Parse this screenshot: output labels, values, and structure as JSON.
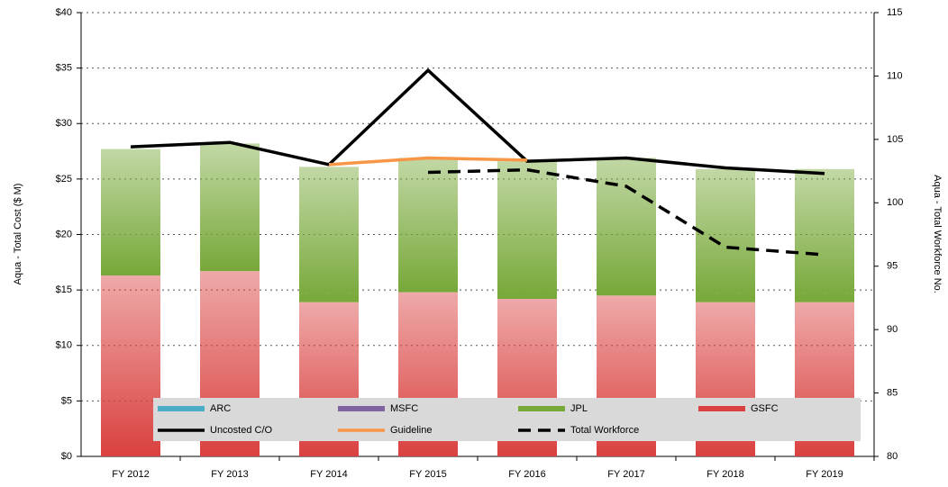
{
  "chart_data": {
    "type": "bar",
    "y_label": "Aqua - Total Cost ($ M)",
    "y2_label": "Aqua - Total Workforce No.",
    "categories": [
      "FY 2012",
      "FY 2013",
      "FY 2014",
      "FY 2015",
      "FY 2016",
      "FY 2017",
      "FY 2018",
      "FY 2019"
    ],
    "series": [
      {
        "name": "ARC",
        "color": "#4bacc6",
        "kind": "bar",
        "values": [
          0,
          0,
          0,
          0,
          0,
          0,
          0,
          0
        ]
      },
      {
        "name": "MSFC",
        "color": "#8064a2",
        "kind": "bar",
        "values": [
          0,
          0,
          0,
          0,
          0,
          0,
          0,
          0
        ]
      },
      {
        "name": "JPL",
        "color": "#77a838",
        "kind": "bar",
        "values": [
          11.4,
          11.5,
          12.2,
          12.1,
          12.4,
          12.4,
          12.0,
          12.0
        ]
      },
      {
        "name": "GSFC",
        "color": "#d9413f",
        "kind": "bar",
        "values": [
          16.3,
          16.7,
          13.9,
          14.8,
          14.2,
          14.5,
          13.9,
          13.9
        ]
      },
      {
        "name": "Uncosted C/O",
        "color": "#000000",
        "kind": "line",
        "values": [
          27.9,
          28.3,
          26.3,
          34.8,
          26.6,
          26.9,
          26.0,
          25.5
        ]
      },
      {
        "name": "Guideline",
        "color": "#f79646",
        "kind": "line",
        "values": [
          null,
          null,
          26.3,
          26.9,
          26.7,
          null,
          null,
          null
        ]
      },
      {
        "name": "Total Workforce",
        "color": "#000000",
        "kind": "line",
        "dashed": true,
        "axis": "y2",
        "values": [
          null,
          null,
          null,
          102.4,
          102.6,
          101.3,
          96.5,
          95.9
        ]
      }
    ],
    "ylim": [
      0,
      40
    ],
    "yticks": [
      {
        "value": 0,
        "label": "$0"
      },
      {
        "value": 5,
        "label": "$5"
      },
      {
        "value": 10,
        "label": "$10"
      },
      {
        "value": 15,
        "label": "$15"
      },
      {
        "value": 20,
        "label": "$20"
      },
      {
        "value": 25,
        "label": "$25"
      },
      {
        "value": 30,
        "label": "$30"
      },
      {
        "value": 35,
        "label": "$35"
      },
      {
        "value": 40,
        "label": "$40"
      }
    ],
    "y2lim": [
      80,
      115
    ],
    "y2ticks": [
      80,
      85,
      90,
      95,
      100,
      105,
      110,
      115
    ],
    "grid": true,
    "legend": "bottom"
  }
}
